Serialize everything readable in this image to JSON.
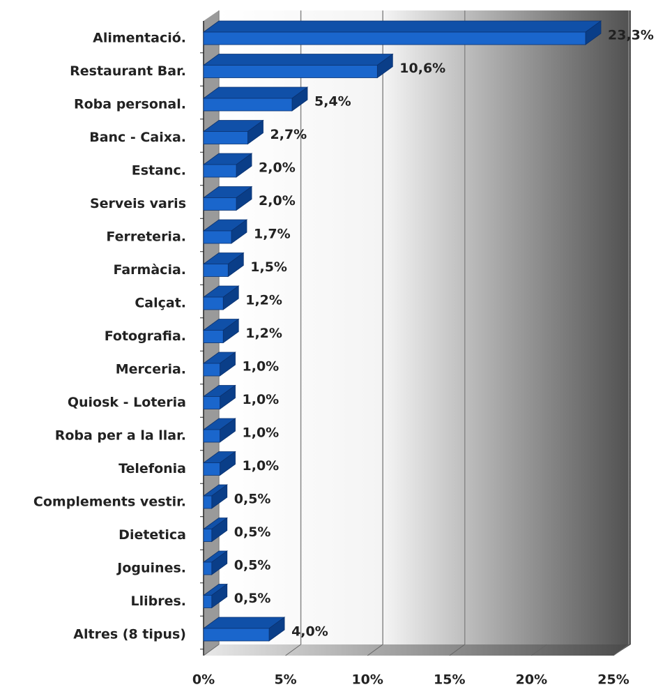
{
  "chart_data": {
    "type": "bar3d",
    "categories": [
      "Alimentació.",
      "Restaurant  Bar.",
      "Roba personal.",
      "Banc - Caixa.",
      "Estanc.",
      "Serveis varis",
      "Ferreteria.",
      "Farmàcia.",
      "Calçat.",
      "Fotografia.",
      "Merceria.",
      "Quiosk - Loteria",
      "Roba per a la llar.",
      "Telefonia",
      "Complements  vestir.",
      "Dietetica",
      "Joguines.",
      "Llibres.",
      "Altres (8 tipus)"
    ],
    "values": [
      23.3,
      10.6,
      5.4,
      2.7,
      2.0,
      2.0,
      1.7,
      1.5,
      1.2,
      1.2,
      1.0,
      1.0,
      1.0,
      1.0,
      0.5,
      0.5,
      0.5,
      0.5,
      4.0
    ],
    "value_labels": [
      "23,3%",
      "10,6%",
      "5,4%",
      "2,7%",
      "2,0%",
      "2,0%",
      "1,7%",
      "1,5%",
      "1,2%",
      "1,2%",
      "1,0%",
      "1,0%",
      "1,0%",
      "1,0%",
      "0,5%",
      "0,5%",
      "0,5%",
      "0,5%",
      "4,0%"
    ],
    "color": "#1a66cc",
    "xlim": [
      0,
      25
    ],
    "xticks": [
      {
        "value": 0,
        "label": "0%"
      },
      {
        "value": 5,
        "label": "5%"
      },
      {
        "value": 10,
        "label": "10%"
      },
      {
        "value": 15,
        "label": "15%"
      },
      {
        "value": 20,
        "label": "20%"
      },
      {
        "value": 25,
        "label": "25%"
      }
    ],
    "grid": true
  }
}
